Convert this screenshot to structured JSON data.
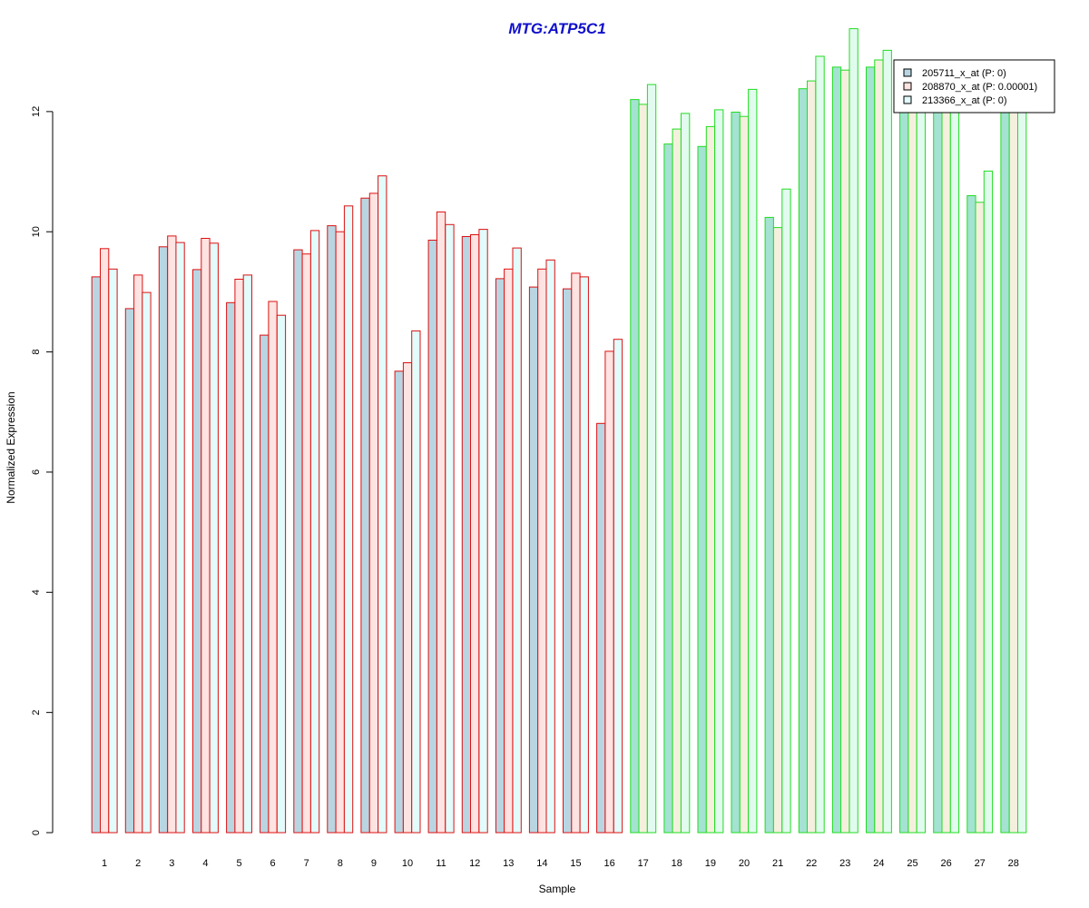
{
  "chart_data": {
    "type": "bar",
    "title": "MTG:ATP5C1",
    "xlabel": "Sample",
    "ylabel": "Normalized Expression",
    "ylim": [
      0,
      13.6
    ],
    "yticks": [
      0,
      2,
      4,
      6,
      8,
      10,
      12
    ],
    "grid": false,
    "legend_position": "top-right",
    "categories": [
      "1",
      "2",
      "3",
      "4",
      "5",
      "6",
      "7",
      "8",
      "9",
      "10",
      "11",
      "12",
      "13",
      "14",
      "15",
      "16",
      "17",
      "18",
      "19",
      "20",
      "21",
      "22",
      "23",
      "24",
      "25",
      "26",
      "27",
      "28"
    ],
    "group_border_colors": [
      "#dd1111",
      "#dd1111",
      "#dd1111",
      "#dd1111",
      "#dd1111",
      "#dd1111",
      "#dd1111",
      "#dd1111",
      "#dd1111",
      "#dd1111",
      "#dd1111",
      "#dd1111",
      "#dd1111",
      "#dd1111",
      "#dd1111",
      "#dd1111",
      "#22dd22",
      "#22dd22",
      "#22dd22",
      "#22dd22",
      "#22dd22",
      "#22dd22",
      "#22dd22",
      "#22dd22",
      "#22dd22",
      "#22dd22",
      "#22dd22",
      "#22dd22"
    ],
    "series": [
      {
        "name": "205711_x_at (P: 0)",
        "color": "#b9d5e2",
        "green_group_color": "#a4e2d2",
        "values": [
          9.25,
          8.72,
          9.75,
          9.37,
          8.82,
          8.28,
          9.7,
          10.1,
          10.56,
          7.68,
          9.86,
          9.92,
          9.22,
          9.08,
          9.05,
          6.81,
          12.2,
          11.46,
          11.42,
          11.99,
          10.24,
          12.38,
          12.74,
          12.74,
          12.4,
          12.4,
          10.6,
          12.4
        ]
      },
      {
        "name": "208870_x_at (P: 0.00001)",
        "color": "#fde3e1",
        "green_group_color": "#f4f0dd",
        "values": [
          9.72,
          9.28,
          9.93,
          9.89,
          9.21,
          8.84,
          9.63,
          10.0,
          10.64,
          7.82,
          10.33,
          9.95,
          9.38,
          9.38,
          9.31,
          8.01,
          12.12,
          11.71,
          11.75,
          11.92,
          10.07,
          12.51,
          12.69,
          12.86,
          12.4,
          12.4,
          10.49,
          12.4
        ]
      },
      {
        "name": "213366_x_at (P: 0)",
        "color": "#e2fbfb",
        "green_group_color": "#e2fbef",
        "values": [
          9.38,
          8.99,
          9.82,
          9.81,
          9.28,
          8.61,
          10.02,
          10.43,
          10.93,
          8.35,
          10.12,
          10.04,
          9.73,
          9.53,
          9.25,
          8.21,
          12.45,
          11.97,
          12.03,
          12.37,
          10.71,
          12.92,
          13.38,
          13.02,
          12.4,
          12.4,
          11.01,
          12.4
        ]
      }
    ],
    "colors": {
      "title": "#1010cc",
      "axis": "#000000",
      "legend_border": "#000000"
    }
  }
}
